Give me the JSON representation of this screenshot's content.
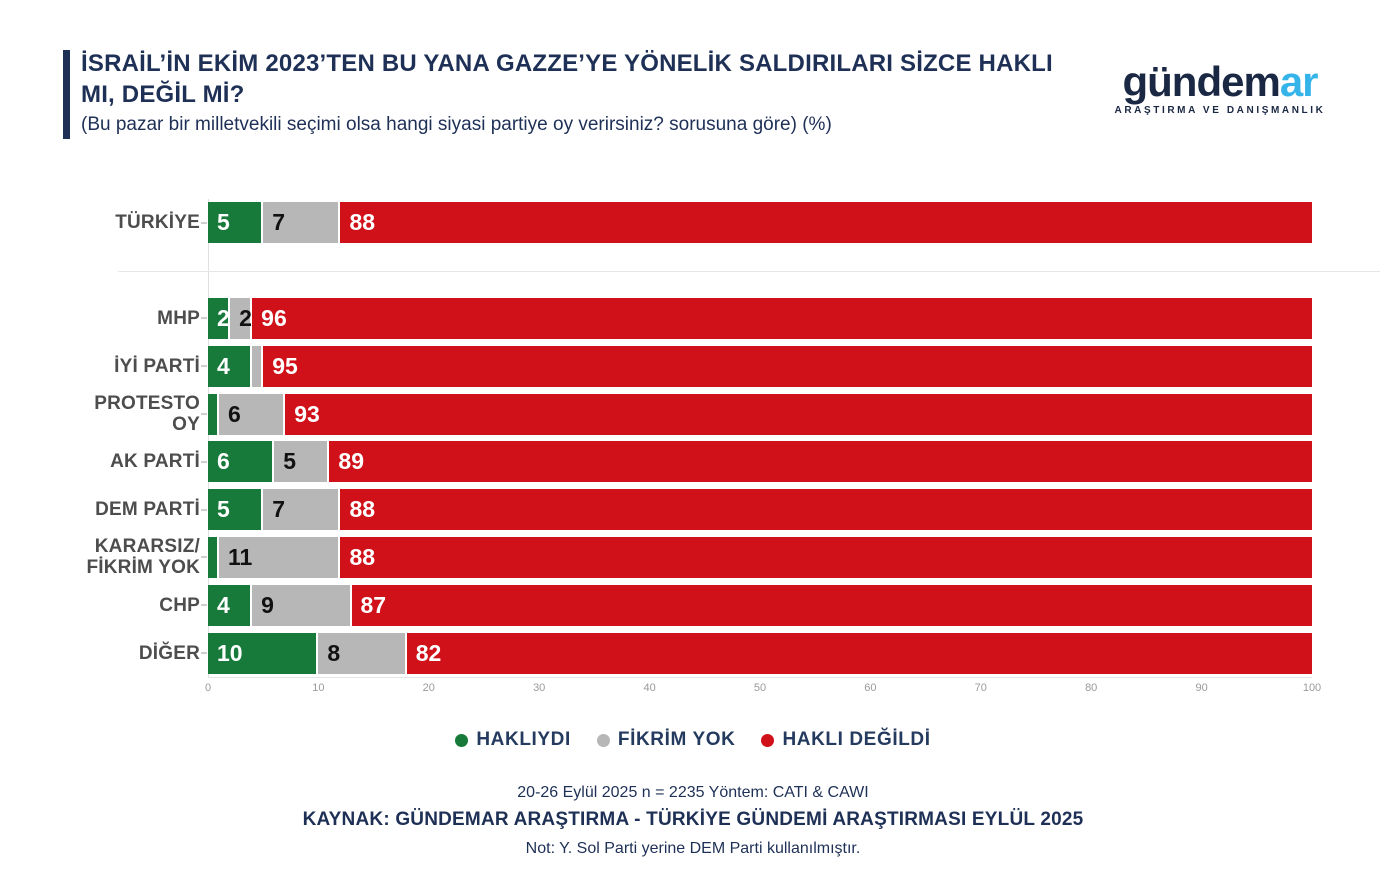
{
  "header": {
    "title_line1": "İSRAİL’İN EKİM 2023’TEN BU YANA GAZZE’YE YÖNELİK SALDIRILARI SİZCE HAKLI",
    "title_line2": "MI, DEĞİL Mİ?",
    "subtitle": "(Bu pazar bir milletvekili seçimi olsa hangi siyasi partiye oy verirsiniz? sorusuna göre) (%)"
  },
  "logo": {
    "text_main": "gündem",
    "text_accent": "ar",
    "subtext": "ARAŞTIRMA VE DANIŞMANLIK"
  },
  "colors": {
    "navy": "#1e3056",
    "green": "#187a3a",
    "gray": "#b7b7b7",
    "red": "#d01119",
    "value_on_gray": "#111111",
    "value_on_color": "#ffffff"
  },
  "chart_data": {
    "type": "bar",
    "orientation": "horizontal",
    "stacked": true,
    "title": "İSRAİL’İN EKİM 2023’TEN BU YANA GAZZE’YE YÖNELİK SALDIRILARI SİZCE HAKLI MI, DEĞİL Mİ?",
    "xlabel": "",
    "ylabel": "",
    "xlim": [
      0,
      100
    ],
    "x_ticks": [
      0,
      10,
      20,
      30,
      40,
      50,
      60,
      70,
      80,
      90,
      100
    ],
    "grid": false,
    "legend_position": "bottom",
    "series_names": [
      "HAKLIYDI",
      "FİKRİM YOK",
      "HAKLI DEĞİLDİ"
    ],
    "series_keys": [
      "hakliydi",
      "fikrim-yok",
      "hakli-degildi"
    ],
    "series_colors": [
      "#187a3a",
      "#b7b7b7",
      "#d01119"
    ],
    "rows": [
      {
        "label_lines": [
          "TÜRKİYE"
        ],
        "values": [
          5,
          7,
          88
        ],
        "labels": [
          "5",
          "7",
          "88"
        ]
      },
      {
        "separator": true
      },
      {
        "label_lines": [
          "MHP"
        ],
        "values": [
          2,
          2,
          96
        ],
        "labels": [
          "2",
          "2",
          "96"
        ]
      },
      {
        "label_lines": [
          "İYİ PARTİ"
        ],
        "values": [
          4,
          1,
          95
        ],
        "labels": [
          "4",
          "",
          "95"
        ]
      },
      {
        "label_lines": [
          "PROTESTO OY"
        ],
        "values": [
          1,
          6,
          93
        ],
        "labels": [
          "",
          "6",
          "93"
        ]
      },
      {
        "label_lines": [
          "AK PARTİ"
        ],
        "values": [
          6,
          5,
          89
        ],
        "labels": [
          "6",
          "5",
          "89"
        ]
      },
      {
        "label_lines": [
          "DEM PARTİ"
        ],
        "values": [
          5,
          7,
          88
        ],
        "labels": [
          "5",
          "7",
          "88"
        ]
      },
      {
        "label_lines": [
          "KARARSIZ/",
          "FİKRİM YOK"
        ],
        "values": [
          1,
          11,
          88
        ],
        "labels": [
          "",
          "11",
          "88"
        ]
      },
      {
        "label_lines": [
          "CHP"
        ],
        "values": [
          4,
          9,
          87
        ],
        "labels": [
          "4",
          "9",
          "87"
        ]
      },
      {
        "label_lines": [
          "DİĞER"
        ],
        "values": [
          10,
          8,
          82
        ],
        "labels": [
          "10",
          "8",
          "82"
        ]
      }
    ]
  },
  "legend": {
    "items": [
      {
        "label": "HAKLIYDI",
        "color": "#187a3a"
      },
      {
        "label": "FİKRİM YOK",
        "color": "#b7b7b7"
      },
      {
        "label": "HAKLI DEĞİLDİ",
        "color": "#d01119"
      }
    ]
  },
  "footer": {
    "methodology": "20-26 Eylül 2025 n = 2235 Yöntem: CATI & CAWI",
    "source": "KAYNAK: GÜNDEMAR ARAŞTIRMA - TÜRKİYE GÜNDEMİ ARAŞTIRMASI EYLÜL 2025",
    "note": "Not: Y. Sol Parti yerine DEM Parti kullanılmıştır."
  }
}
